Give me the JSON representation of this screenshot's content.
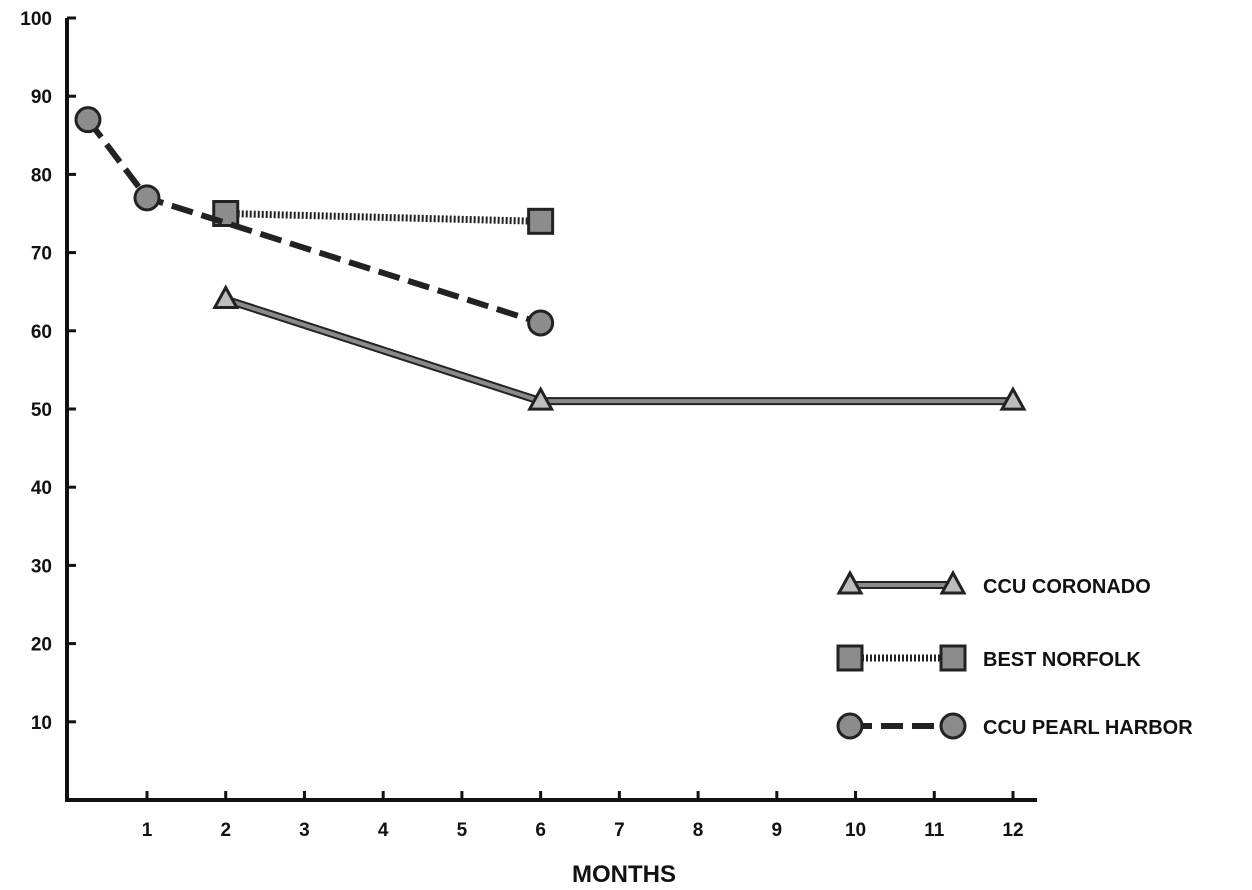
{
  "chart_data": {
    "type": "line",
    "xlabel": "MONTHS",
    "ylabel": "",
    "xlim": [
      0,
      12
    ],
    "ylim": [
      0,
      100
    ],
    "x_ticks": [
      1,
      2,
      3,
      4,
      5,
      6,
      7,
      8,
      9,
      10,
      11,
      12
    ],
    "y_ticks": [
      10,
      20,
      30,
      40,
      50,
      60,
      70,
      80,
      90,
      100
    ],
    "grid": false,
    "legend_position": "lower-right",
    "series": [
      {
        "name": "CCU CORONADO",
        "marker": "triangle",
        "line_style": "solid",
        "x": [
          2,
          6,
          12
        ],
        "y": [
          64,
          51,
          51
        ]
      },
      {
        "name": "BEST NORFOLK",
        "marker": "square",
        "line_style": "dotted",
        "x": [
          2,
          6
        ],
        "y": [
          75,
          74
        ]
      },
      {
        "name": "CCU PEARL HARBOR",
        "marker": "circle",
        "line_style": "dashed",
        "x": [
          0.25,
          1,
          6
        ],
        "y": [
          87,
          77,
          61
        ]
      }
    ]
  }
}
